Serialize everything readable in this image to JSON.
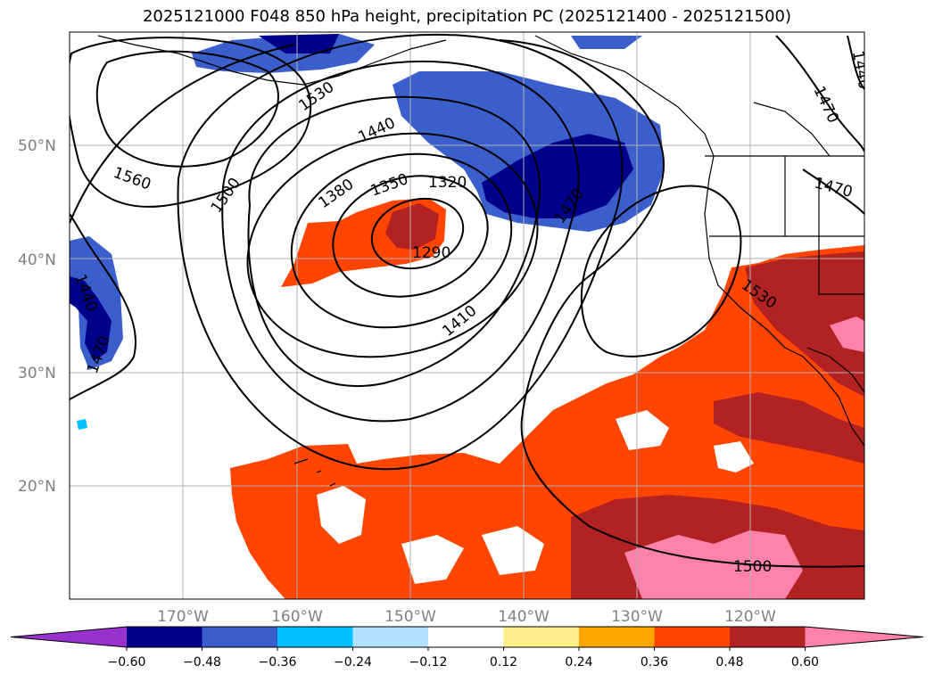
{
  "title": "2025121000 F048 850 hPa height, precipitation PC (2025121400 - 2025121500)",
  "lat_labels": [
    "20°N",
    "30°N",
    "40°N",
    "50°N"
  ],
  "lon_labels": [
    "170°W",
    "160°W",
    "150°W",
    "140°W",
    "130°W",
    "120°W"
  ],
  "contour_labels": [
    "1290",
    "1320",
    "1350",
    "1380",
    "1410",
    "1440",
    "1470",
    "1500",
    "1530",
    "1560"
  ],
  "colorbar": {
    "ticks": [
      "−0.60",
      "−0.48",
      "−0.36",
      "−0.24",
      "−0.12",
      "0.12",
      "0.24",
      "0.36",
      "0.48",
      "0.60"
    ],
    "colors": [
      "#9932cc",
      "#00008b",
      "#3a5fcd",
      "#00bfff",
      "#b0e2ff",
      "#ffffff",
      "#ffec8b",
      "#ffa500",
      "#ff4500",
      "#b22222",
      "#ff82ab"
    ]
  }
}
